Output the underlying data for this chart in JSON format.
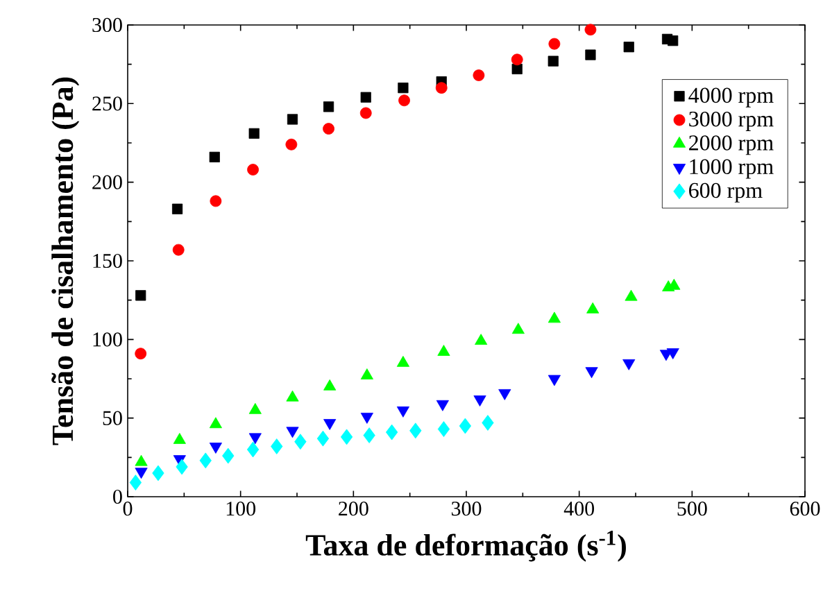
{
  "chart_data": {
    "type": "scatter",
    "xlabel": "Taxa de deformação (s$^{-1}$)",
    "ylabel": "Tensão de cisalhamento (Pa)",
    "xlim": [
      0,
      600
    ],
    "ylim": [
      0,
      300
    ],
    "xticks": [
      0,
      100,
      200,
      300,
      400,
      500,
      600
    ],
    "yticks": [
      0,
      50,
      100,
      150,
      200,
      250,
      300
    ],
    "grid": false,
    "legend": "top right",
    "series": [
      {
        "name": "4000 rpm",
        "color": "#000000",
        "marker": "square",
        "x": [
          11.5,
          44,
          77,
          112,
          146,
          178,
          211,
          244,
          278,
          345,
          377,
          410,
          444,
          478,
          483
        ],
        "values": [
          128,
          183,
          216,
          231,
          240,
          248,
          254,
          260,
          264,
          272,
          277,
          281,
          286,
          291,
          290
        ]
      },
      {
        "name": "3000 rpm",
        "color": "#ff0000",
        "marker": "circle",
        "x": [
          11.5,
          45,
          78,
          111,
          145,
          178,
          211,
          245,
          278,
          311,
          345,
          378,
          410
        ],
        "values": [
          91,
          157,
          188,
          208,
          224,
          234,
          244,
          252,
          260,
          268,
          278,
          288,
          297
        ]
      },
      {
        "name": "2000 rpm",
        "color": "#00ff00",
        "marker": "triangle",
        "x": [
          12,
          46,
          78,
          113,
          146,
          179,
          212,
          244,
          280,
          313,
          346,
          378,
          412,
          446,
          479,
          484
        ],
        "values": [
          22,
          36,
          46,
          55,
          63,
          70,
          77,
          85,
          92,
          99,
          106,
          113,
          119,
          127,
          133,
          134
        ]
      },
      {
        "name": "1000 rpm",
        "color": "#0000ff",
        "marker": "triangle_down",
        "x": [
          12,
          46,
          78,
          113,
          146,
          179,
          212,
          244,
          279,
          312,
          334,
          378,
          411,
          444,
          477,
          483
        ],
        "values": [
          16,
          24,
          32,
          38,
          42,
          47,
          51,
          55,
          59,
          62,
          66,
          75,
          80,
          85,
          91,
          92
        ]
      },
      {
        "name": "600  rpm",
        "color": "#00ffff",
        "marker": "diamond",
        "x": [
          7,
          27,
          48,
          69,
          89,
          111,
          132,
          153,
          173,
          194,
          214,
          234,
          255,
          280,
          299,
          319
        ],
        "values": [
          9,
          15,
          19,
          23,
          26,
          30,
          32,
          35,
          37,
          38,
          39,
          41,
          42,
          43,
          45,
          47
        ]
      }
    ]
  }
}
